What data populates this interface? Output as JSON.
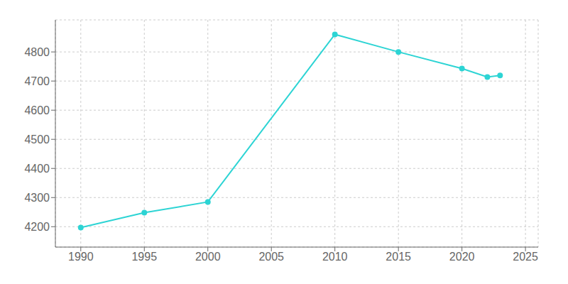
{
  "chart_data": {
    "type": "line",
    "x": [
      1990,
      1995,
      2000,
      2010,
      2015,
      2020,
      2022,
      2023
    ],
    "values": [
      4197,
      4248,
      4285,
      4860,
      4800,
      4743,
      4714,
      4719
    ],
    "color": "#2dd4d4",
    "marker": "circle",
    "xlim": [
      1988,
      2026
    ],
    "ylim": [
      4130,
      4910
    ],
    "xticks": [
      1990,
      1995,
      2000,
      2005,
      2010,
      2015,
      2020,
      2025
    ],
    "yticks": [
      4200,
      4300,
      4400,
      4500,
      4600,
      4700,
      4800
    ],
    "grid": true
  }
}
